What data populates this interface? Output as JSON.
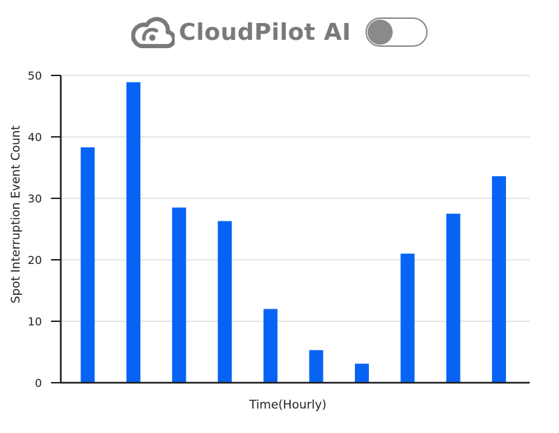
{
  "header": {
    "brand_name": "CloudPilot AI",
    "logo_icon": "cloud-gauge-icon",
    "toggle_state": "off"
  },
  "colors": {
    "bar": "#0763f4",
    "axis": "#222222",
    "grid": "#cccccc",
    "brand_gray": "#7a7a7a"
  },
  "chart_data": {
    "type": "bar",
    "title": "",
    "xlabel": "Time(Hourly)",
    "ylabel": "Spot Interruption Event Count",
    "ylim": [
      0,
      50
    ],
    "yticks": [
      0,
      10,
      20,
      30,
      40,
      50
    ],
    "grid": true,
    "categories": [
      "",
      "",
      "",
      "",
      "",
      "",
      "",
      "",
      "",
      ""
    ],
    "values": [
      38.3,
      48.9,
      28.5,
      26.3,
      12.0,
      5.3,
      3.1,
      21.0,
      27.5,
      33.6
    ]
  }
}
